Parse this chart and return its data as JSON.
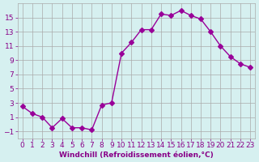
{
  "x": [
    0,
    1,
    2,
    3,
    4,
    5,
    6,
    7,
    8,
    9,
    10,
    11,
    12,
    13,
    14,
    15,
    16,
    17,
    18,
    19,
    20,
    21,
    22,
    23
  ],
  "y": [
    2.5,
    1.5,
    1.0,
    -0.5,
    0.8,
    -0.5,
    -0.5,
    -0.8,
    2.7,
    3.0,
    10.0,
    11.5,
    13.3,
    13.3,
    15.5,
    15.3,
    16.0,
    15.3,
    14.8,
    13.0,
    11.0,
    9.5,
    8.5,
    8.0
  ],
  "line_color": "#990099",
  "marker": "D",
  "marker_size": 3,
  "bg_color": "#d6f0f0",
  "grid_color": "#aaaaaa",
  "xlabel": "Windchill (Refroidissement éolien,°C)",
  "xlim": [
    -0.5,
    23.5
  ],
  "ylim": [
    -2,
    17
  ],
  "yticks": [
    -1,
    1,
    3,
    5,
    7,
    9,
    11,
    13,
    15
  ],
  "xticks": [
    0,
    1,
    2,
    3,
    4,
    5,
    6,
    7,
    8,
    9,
    10,
    11,
    12,
    13,
    14,
    15,
    16,
    17,
    18,
    19,
    20,
    21,
    22,
    23
  ],
  "tick_color": "#880088",
  "label_color": "#880088",
  "font_size": 6.5
}
